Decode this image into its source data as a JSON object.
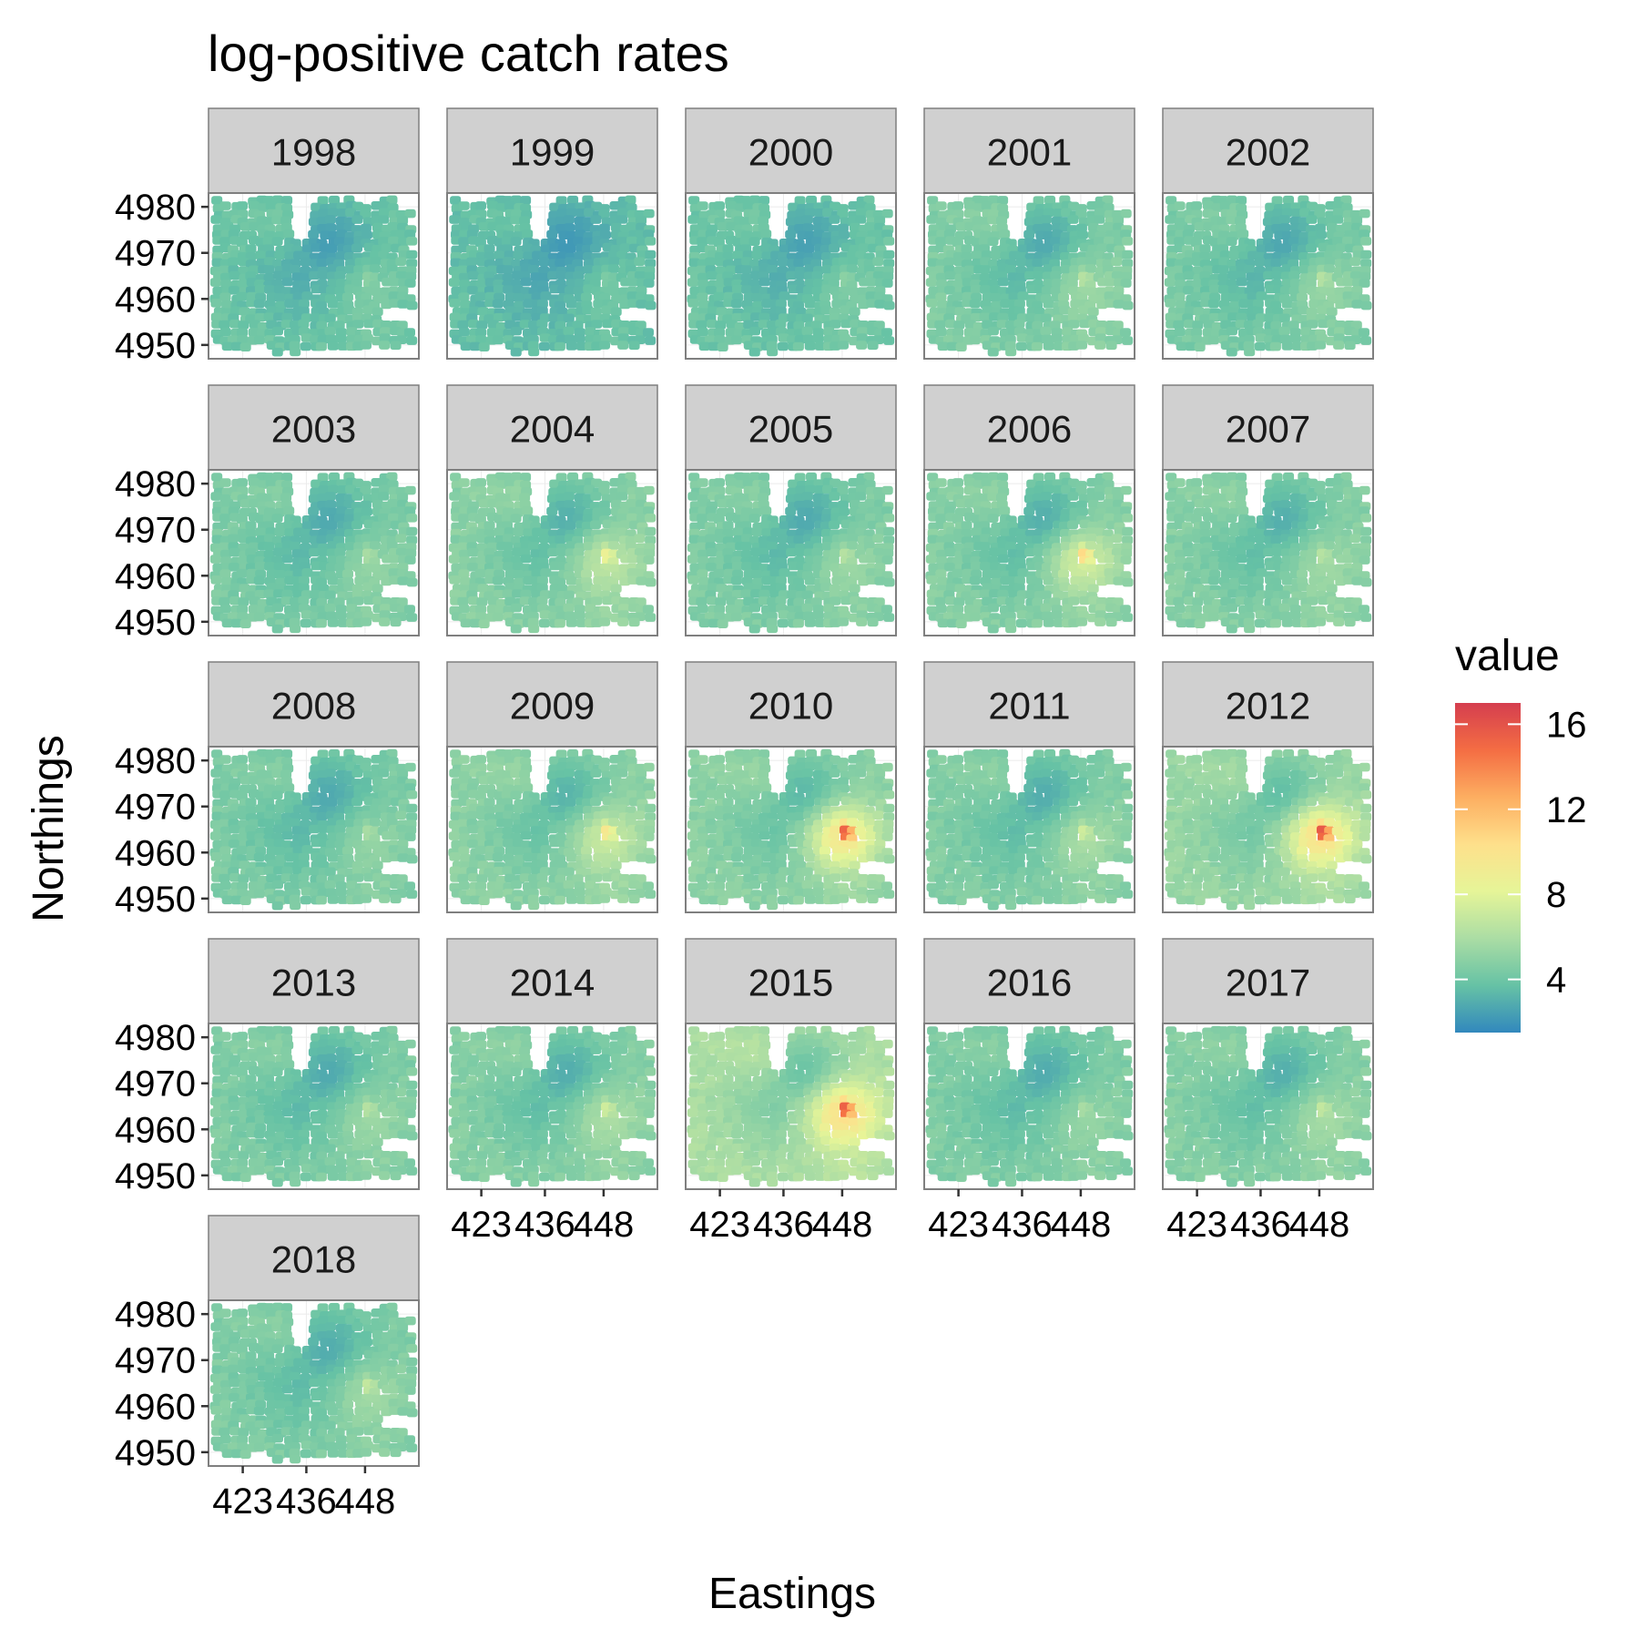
{
  "chart_data": {
    "type": "heatmap",
    "title": "log-positive catch rates",
    "xlabel": "Eastings",
    "ylabel": "Northings",
    "legend": {
      "title": "value",
      "position": "right",
      "breaks": [
        4,
        8,
        12,
        16
      ],
      "range": [
        1.5,
        17
      ],
      "colors": [
        "#3288BD",
        "#66C2A5",
        "#ABDDA4",
        "#E6F598",
        "#FEE08B",
        "#FDAE61",
        "#F46D43",
        "#D53E4F"
      ]
    },
    "x_ticks": [
      423,
      436,
      448
    ],
    "y_ticks": [
      4950,
      4960,
      4970,
      4980
    ],
    "xlim": [
      416,
      459
    ],
    "ylim": [
      4947,
      4983
    ],
    "grid": true,
    "panels": [
      {
        "year": "1998",
        "level": 4.0,
        "low_spot": 2.2,
        "hot_spot": 5.0
      },
      {
        "year": "1999",
        "level": 3.7,
        "low_spot": 2.0,
        "hot_spot": 4.5
      },
      {
        "year": "2000",
        "level": 4.0,
        "low_spot": 2.3,
        "hot_spot": 5.0
      },
      {
        "year": "2001",
        "level": 4.6,
        "low_spot": 2.6,
        "hot_spot": 6.5
      },
      {
        "year": "2002",
        "level": 4.4,
        "low_spot": 2.5,
        "hot_spot": 6.5
      },
      {
        "year": "2003",
        "level": 4.5,
        "low_spot": 2.6,
        "hot_spot": 6.0
      },
      {
        "year": "2004",
        "level": 4.9,
        "low_spot": 2.8,
        "hot_spot": 9.0
      },
      {
        "year": "2005",
        "level": 4.6,
        "low_spot": 2.6,
        "hot_spot": 6.5
      },
      {
        "year": "2006",
        "level": 4.8,
        "low_spot": 2.7,
        "hot_spot": 11.0
      },
      {
        "year": "2007",
        "level": 4.8,
        "low_spot": 2.8,
        "hot_spot": 6.5
      },
      {
        "year": "2008",
        "level": 4.5,
        "low_spot": 2.6,
        "hot_spot": 6.0
      },
      {
        "year": "2009",
        "level": 5.0,
        "low_spot": 2.9,
        "hot_spot": 10.0
      },
      {
        "year": "2010",
        "level": 5.0,
        "low_spot": 3.0,
        "hot_spot": 16.0
      },
      {
        "year": "2011",
        "level": 4.7,
        "low_spot": 2.7,
        "hot_spot": 7.5
      },
      {
        "year": "2012",
        "level": 5.4,
        "low_spot": 3.2,
        "hot_spot": 16.5
      },
      {
        "year": "2013",
        "level": 4.6,
        "low_spot": 2.6,
        "hot_spot": 6.5
      },
      {
        "year": "2014",
        "level": 4.8,
        "low_spot": 2.7,
        "hot_spot": 7.5
      },
      {
        "year": "2015",
        "level": 6.0,
        "low_spot": 3.5,
        "hot_spot": 16.0
      },
      {
        "year": "2016",
        "level": 4.6,
        "low_spot": 2.7,
        "hot_spot": 6.0
      },
      {
        "year": "2017",
        "level": 4.8,
        "low_spot": 2.8,
        "hot_spot": 7.0
      },
      {
        "year": "2018",
        "level": 4.6,
        "low_spot": 2.7,
        "hot_spot": 7.0
      }
    ]
  }
}
